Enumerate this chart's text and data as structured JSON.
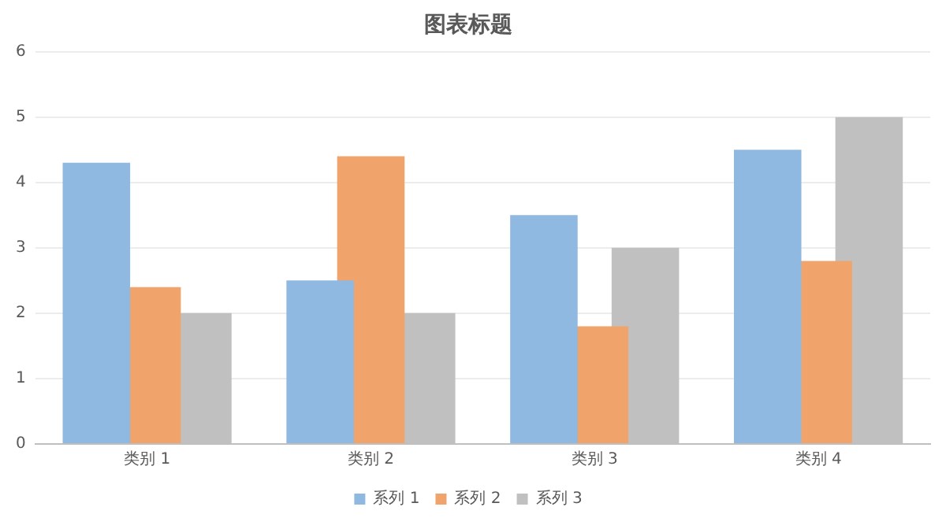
{
  "chart_data": {
    "type": "bar",
    "title": "图表标题",
    "categories": [
      "类别 1",
      "类别 2",
      "类别 3",
      "类别 4"
    ],
    "series": [
      {
        "name": "系列 1",
        "color": "#8fb9e1",
        "values": [
          4.3,
          2.5,
          3.5,
          4.5
        ]
      },
      {
        "name": "系列 2",
        "color": "#f0a46c",
        "values": [
          2.4,
          4.4,
          1.8,
          2.8
        ]
      },
      {
        "name": "系列 3",
        "color": "#c0c0c0",
        "values": [
          2,
          2,
          3,
          5
        ]
      }
    ],
    "ylim": [
      0,
      6
    ],
    "yticks": [
      0,
      1,
      2,
      3,
      4,
      5,
      6
    ],
    "grid": "y",
    "legend": "bottom"
  }
}
